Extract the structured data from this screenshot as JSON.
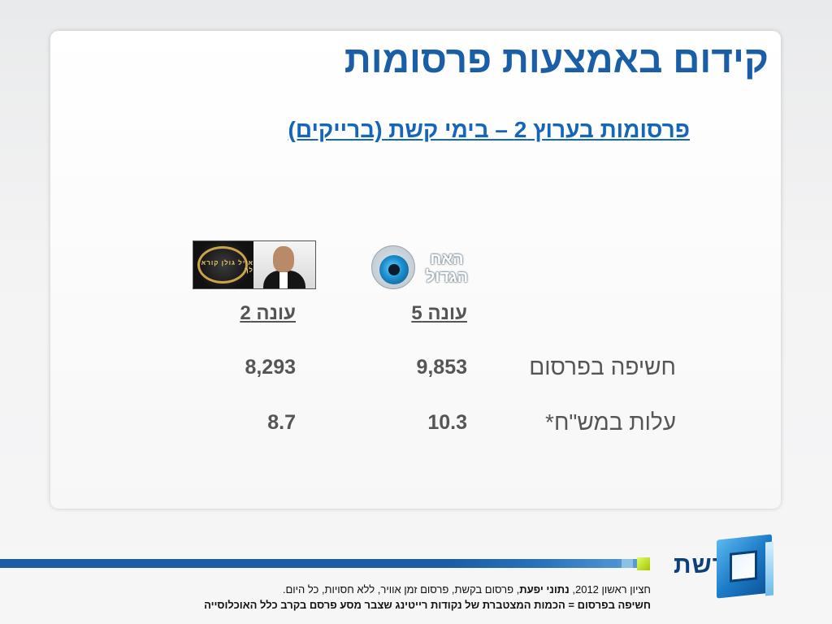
{
  "slide": {
    "title": "קידום באמצעות פרסומות",
    "subtitle": "פרסומות בערוץ 2 – בימי קשת (ברייקים)"
  },
  "logos": {
    "eyal_text": "אייל גולן קורא לך",
    "bb_text": "האח הגדול"
  },
  "table": {
    "columns": [
      "עונה 5",
      "עונה 2"
    ],
    "rows": [
      {
        "label": "חשיפה בפרסום",
        "values": [
          "9,853",
          "8,293"
        ]
      },
      {
        "label": "עלות במש\"ח*",
        "values": [
          "10.3",
          "8.7"
        ]
      }
    ]
  },
  "footer": {
    "note_line1_start": "חציון ראשון 2012, ",
    "note_line1_bold": "נתוני יפעת",
    "note_line1_end": ", פרסום בקשת, פרסום זמן אוויר, ללא חסויות, כל היום.",
    "note_line2": "חשיפה בפרסום = הכמות המצטברת של נקודות רייטינג שצבר מסע פרסם בקרב כלל האוכלוסייה",
    "brand": "רשת"
  },
  "colors": {
    "title": "#1a5ea8",
    "subtitle": "#1565b8",
    "stripe": "#1b5ea4",
    "accent_green": "#a4c400"
  }
}
